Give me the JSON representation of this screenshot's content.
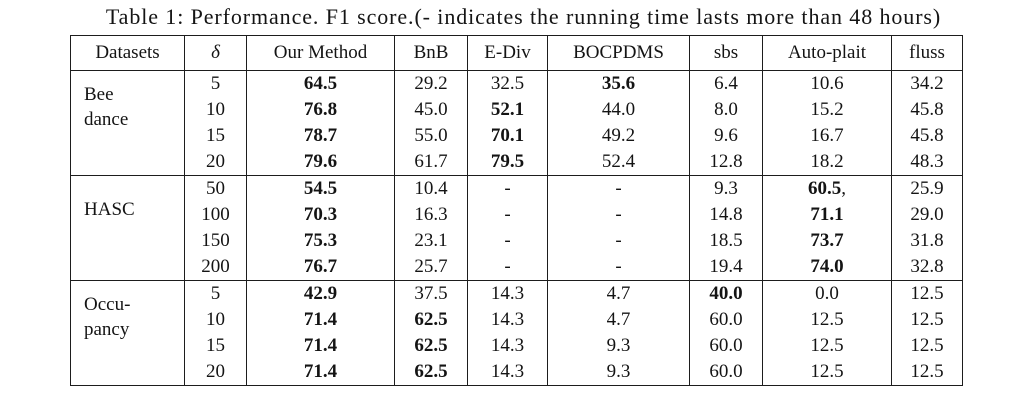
{
  "caption": "Table 1: Performance. F1 score.(- indicates the running time lasts more than 48 hours)",
  "table": {
    "columns": [
      {
        "name": "datasets",
        "label": "Datasets"
      },
      {
        "name": "delta",
        "label": "δ",
        "italic": true
      },
      {
        "name": "our-method",
        "label": "Our Method"
      },
      {
        "name": "bnb",
        "label": "BnB"
      },
      {
        "name": "e-div",
        "label": "E-Div"
      },
      {
        "name": "bocpdms",
        "label": "BOCPDMS"
      },
      {
        "name": "sbs",
        "label": "sbs"
      },
      {
        "name": "auto-plait",
        "label": "Auto-plait"
      },
      {
        "name": "fluss",
        "label": "fluss"
      }
    ],
    "groups": [
      {
        "name": "Bee dance",
        "lines": [
          "Bee",
          "dance"
        ],
        "rows": [
          {
            "delta": "5",
            "values": [
              {
                "value": "64.5",
                "bold": true
              },
              {
                "value": "29.2"
              },
              {
                "value": "32.5"
              },
              {
                "value": "35.6",
                "bold": true
              },
              {
                "value": "6.4"
              },
              {
                "value": "10.6"
              },
              {
                "value": "34.2"
              }
            ]
          },
          {
            "delta": "10",
            "values": [
              {
                "value": "76.8",
                "bold": true
              },
              {
                "value": "45.0"
              },
              {
                "value": "52.1",
                "bold": true
              },
              {
                "value": "44.0"
              },
              {
                "value": "8.0"
              },
              {
                "value": "15.2"
              },
              {
                "value": "45.8"
              }
            ]
          },
          {
            "delta": "15",
            "values": [
              {
                "value": "78.7",
                "bold": true
              },
              {
                "value": "55.0"
              },
              {
                "value": "70.1",
                "bold": true
              },
              {
                "value": "49.2"
              },
              {
                "value": "9.6"
              },
              {
                "value": "16.7"
              },
              {
                "value": "45.8"
              }
            ]
          },
          {
            "delta": "20",
            "values": [
              {
                "value": "79.6",
                "bold": true
              },
              {
                "value": "61.7"
              },
              {
                "value": "79.5",
                "bold": true
              },
              {
                "value": "52.4"
              },
              {
                "value": "12.8"
              },
              {
                "value": "18.2"
              },
              {
                "value": "48.3"
              }
            ]
          }
        ]
      },
      {
        "name": "HASC",
        "lines": [
          "HASC"
        ],
        "rows": [
          {
            "delta": "50",
            "values": [
              {
                "value": "54.5",
                "bold": true
              },
              {
                "value": "10.4"
              },
              {
                "value": "-"
              },
              {
                "value": "-"
              },
              {
                "value": "9.3"
              },
              {
                "value": "60.5",
                "bold": true,
                "suffix": ","
              },
              {
                "value": "25.9"
              }
            ]
          },
          {
            "delta": "100",
            "values": [
              {
                "value": "70.3",
                "bold": true
              },
              {
                "value": "16.3"
              },
              {
                "value": "-"
              },
              {
                "value": "-"
              },
              {
                "value": "14.8"
              },
              {
                "value": "71.1",
                "bold": true
              },
              {
                "value": "29.0"
              }
            ]
          },
          {
            "delta": "150",
            "values": [
              {
                "value": "75.3",
                "bold": true
              },
              {
                "value": "23.1"
              },
              {
                "value": "-"
              },
              {
                "value": "-"
              },
              {
                "value": "18.5"
              },
              {
                "value": "73.7",
                "bold": true
              },
              {
                "value": "31.8"
              }
            ]
          },
          {
            "delta": "200",
            "values": [
              {
                "value": "76.7",
                "bold": true
              },
              {
                "value": "25.7"
              },
              {
                "value": "-"
              },
              {
                "value": "-"
              },
              {
                "value": "19.4"
              },
              {
                "value": "74.0",
                "bold": true
              },
              {
                "value": "32.8"
              }
            ]
          }
        ]
      },
      {
        "name": "Occupancy",
        "lines": [
          "Occu-",
          "pancy"
        ],
        "rows": [
          {
            "delta": "5",
            "values": [
              {
                "value": "42.9",
                "bold": true
              },
              {
                "value": "37.5"
              },
              {
                "value": "14.3"
              },
              {
                "value": "4.7"
              },
              {
                "value": "40.0",
                "bold": true
              },
              {
                "value": "0.0"
              },
              {
                "value": "12.5"
              }
            ]
          },
          {
            "delta": "10",
            "values": [
              {
                "value": "71.4",
                "bold": true
              },
              {
                "value": "62.5",
                "bold": true
              },
              {
                "value": "14.3"
              },
              {
                "value": "4.7"
              },
              {
                "value": "60.0"
              },
              {
                "value": "12.5"
              },
              {
                "value": "12.5"
              }
            ]
          },
          {
            "delta": "15",
            "values": [
              {
                "value": "71.4",
                "bold": true
              },
              {
                "value": "62.5",
                "bold": true
              },
              {
                "value": "14.3"
              },
              {
                "value": "9.3"
              },
              {
                "value": "60.0"
              },
              {
                "value": "12.5"
              },
              {
                "value": "12.5"
              }
            ]
          },
          {
            "delta": "20",
            "values": [
              {
                "value": "71.4",
                "bold": true
              },
              {
                "value": "62.5",
                "bold": true
              },
              {
                "value": "14.3"
              },
              {
                "value": "9.3"
              },
              {
                "value": "60.0"
              },
              {
                "value": "12.5"
              },
              {
                "value": "12.5"
              }
            ]
          }
        ]
      }
    ]
  },
  "colors": {
    "text": "#141414",
    "border": "#1d1d1d",
    "background": "#ffffff"
  }
}
